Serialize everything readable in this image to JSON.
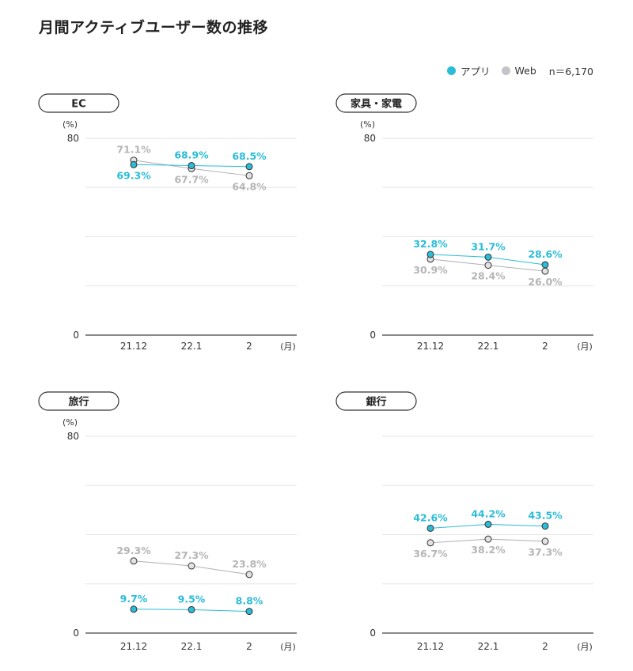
{
  "title": "月間アクティブユーザー数の推移",
  "legend": {
    "app_label": "アプリ",
    "web_label": "Web",
    "n_label": "n＝6,170"
  },
  "colors": {
    "app": "#2bbcd8",
    "web": "#c4c4c8",
    "app_label": "#2bbcd8",
    "web_label": "#b5b5b9",
    "grid": "#e6e6e6",
    "axis": "#444444"
  },
  "chart_data": [
    {
      "type": "line",
      "title": "EC",
      "ylabel": "(%)",
      "xunit": "(月)",
      "categories": [
        "21.12",
        "22.1",
        "2"
      ],
      "ylim": [
        0,
        80
      ],
      "yticks": [
        "80",
        "0"
      ],
      "series": [
        {
          "name": "アプリ",
          "values": [
            69.3,
            68.9,
            68.5
          ],
          "labels": [
            "69.3%",
            "68.9%",
            "68.5%"
          ],
          "label_pos": [
            "below",
            "above",
            "above"
          ]
        },
        {
          "name": "Web",
          "values": [
            71.1,
            67.7,
            64.8
          ],
          "labels": [
            "71.1%",
            "67.7%",
            "64.8%"
          ],
          "label_pos": [
            "above",
            "below",
            "below"
          ]
        }
      ]
    },
    {
      "type": "line",
      "title": "家具・家電",
      "ylabel": "(%)",
      "xunit": "(月)",
      "categories": [
        "21.12",
        "22.1",
        "2"
      ],
      "ylim": [
        0,
        80
      ],
      "yticks": [
        "80",
        "0"
      ],
      "series": [
        {
          "name": "アプリ",
          "values": [
            32.8,
            31.7,
            28.6
          ],
          "labels": [
            "32.8%",
            "31.7%",
            "28.6%"
          ],
          "label_pos": [
            "above",
            "above",
            "above"
          ]
        },
        {
          "name": "Web",
          "values": [
            30.9,
            28.4,
            26.0
          ],
          "labels": [
            "30.9%",
            "28.4%",
            "26.0%"
          ],
          "label_pos": [
            "below",
            "below",
            "below"
          ]
        }
      ]
    },
    {
      "type": "line",
      "title": "旅行",
      "ylabel": "(%)",
      "xunit": "(月)",
      "categories": [
        "21.12",
        "22.1",
        "2"
      ],
      "ylim": [
        0,
        80
      ],
      "yticks": [
        "80",
        "0"
      ],
      "series": [
        {
          "name": "アプリ",
          "values": [
            9.7,
            9.5,
            8.8
          ],
          "labels": [
            "9.7%",
            "9.5%",
            "8.8%"
          ],
          "label_pos": [
            "above",
            "above",
            "above"
          ]
        },
        {
          "name": "Web",
          "values": [
            29.3,
            27.3,
            23.8
          ],
          "labels": [
            "29.3%",
            "27.3%",
            "23.8%"
          ],
          "label_pos": [
            "above",
            "above",
            "above"
          ]
        }
      ]
    },
    {
      "type": "line",
      "title": "銀行",
      "ylabel": "",
      "xunit": "(月)",
      "categories": [
        "21.12",
        "22.1",
        "2"
      ],
      "ylim": [
        0,
        80
      ],
      "yticks": [
        "",
        "0"
      ],
      "series": [
        {
          "name": "アプリ",
          "values": [
            42.6,
            44.2,
            43.5
          ],
          "labels": [
            "42.6%",
            "44.2%",
            "43.5%"
          ],
          "label_pos": [
            "above",
            "above",
            "above"
          ]
        },
        {
          "name": "Web",
          "values": [
            36.7,
            38.2,
            37.3
          ],
          "labels": [
            "36.7%",
            "38.2%",
            "37.3%"
          ],
          "label_pos": [
            "below",
            "below",
            "below"
          ]
        }
      ]
    }
  ]
}
